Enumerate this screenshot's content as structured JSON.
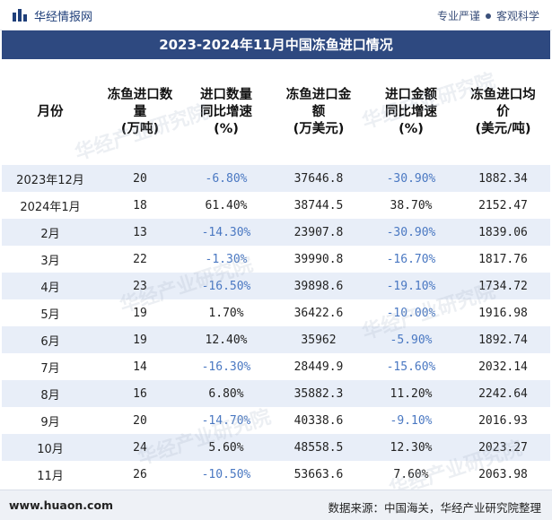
{
  "header": {
    "brand": "华经情报网",
    "tagline_left": "专业严谨",
    "tagline_right": "客观科学"
  },
  "title": "2023-2024年11月中国冻鱼进口情况",
  "table": {
    "columns": [
      "月份",
      "冻鱼进口数量(万吨)",
      "进口数量同比增速(%)",
      "冻鱼进口金额(万美元)",
      "进口金额同比增速(%)",
      "冻鱼进口均价(美元/吨)"
    ],
    "column_lines": [
      [
        "月份"
      ],
      [
        "冻鱼进口数",
        "量",
        "(万吨)"
      ],
      [
        "进口数量",
        "同比增速",
        "(%)"
      ],
      [
        "冻鱼进口金",
        "额",
        "(万美元)"
      ],
      [
        "进口金额",
        "同比增速",
        "(%)"
      ],
      [
        "冻鱼进口均",
        "价",
        "(美元/吨)"
      ]
    ],
    "rows": [
      [
        "2023年12月",
        "20",
        "-6.80%",
        "37646.8",
        "-30.90%",
        "1882.34"
      ],
      [
        "2024年1月",
        "18",
        "61.40%",
        "38744.5",
        "38.70%",
        "2152.47"
      ],
      [
        "2月",
        "13",
        "-14.30%",
        "23907.8",
        "-30.90%",
        "1839.06"
      ],
      [
        "3月",
        "22",
        "-1.30%",
        "39990.8",
        "-16.70%",
        "1817.76"
      ],
      [
        "4月",
        "23",
        "-16.50%",
        "39898.6",
        "-19.10%",
        "1734.72"
      ],
      [
        "5月",
        "19",
        "1.70%",
        "36422.6",
        "-10.00%",
        "1916.98"
      ],
      [
        "6月",
        "19",
        "12.40%",
        "35962",
        "-5.90%",
        "1892.74"
      ],
      [
        "7月",
        "14",
        "-16.30%",
        "28449.9",
        "-15.60%",
        "2032.14"
      ],
      [
        "8月",
        "16",
        "6.80%",
        "35882.3",
        "11.20%",
        "2242.64"
      ],
      [
        "9月",
        "20",
        "-14.70%",
        "40338.6",
        "-9.10%",
        "2016.93"
      ],
      [
        "10月",
        "24",
        "5.60%",
        "48558.5",
        "12.30%",
        "2023.27"
      ],
      [
        "11月",
        "26",
        "-10.50%",
        "53663.6",
        "7.60%",
        "2063.98"
      ]
    ]
  },
  "watermark": "华经产业研究院",
  "footer": {
    "site": "www.huaon.com",
    "source": "数据来源：中国海关，华经产业研究院整理"
  },
  "colors": {
    "title_bg": "#2e4980",
    "row_alt": "#e8eef8",
    "negative_text": "#4a78c2"
  }
}
